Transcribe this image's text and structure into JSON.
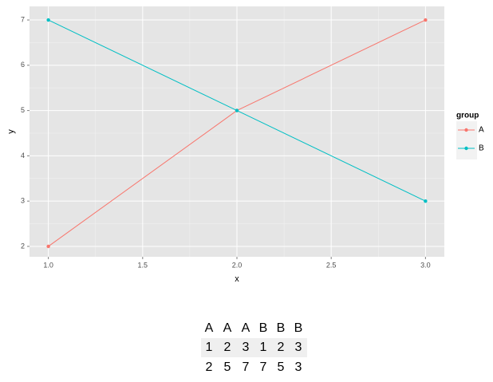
{
  "chart_data": {
    "type": "line",
    "x_label": "x",
    "y_label": "y",
    "x": [
      1,
      2,
      3
    ],
    "series": [
      {
        "name": "A",
        "color": "#F8766D",
        "values": [
          2,
          5,
          7
        ]
      },
      {
        "name": "B",
        "color": "#00BFC4",
        "values": [
          7,
          5,
          3
        ]
      }
    ],
    "xlim": [
      0.9,
      3.1
    ],
    "xticks": [
      {
        "value": 1,
        "label": "1.0"
      },
      1.5,
      {
        "value": 2,
        "label": "2.0"
      },
      2.5,
      {
        "value": 3,
        "label": "3.0"
      }
    ],
    "ylim": [
      1.77,
      7.3
    ],
    "yticks": [
      2,
      3,
      4,
      5,
      6,
      7
    ],
    "grid": true,
    "legend_title": "group",
    "legend_position": "right"
  },
  "table": {
    "rows": [
      [
        "A",
        "A",
        "A",
        "B",
        "B",
        "B"
      ],
      [
        1,
        2,
        3,
        1,
        2,
        3
      ],
      [
        2,
        5,
        7,
        7,
        5,
        3
      ]
    ]
  }
}
